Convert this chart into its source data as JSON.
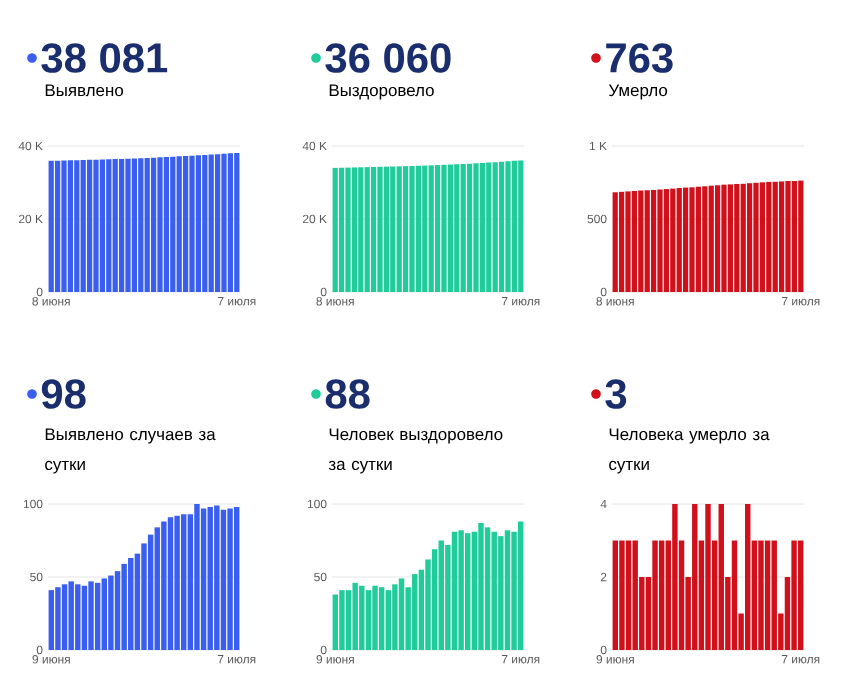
{
  "chart_data": [
    {
      "type": "bar",
      "title": "38 081",
      "subtitle": "Выявлено",
      "color": "#3a5ff0",
      "grid": "y",
      "categories": [
        "8 июня",
        null,
        null,
        null,
        null,
        null,
        null,
        null,
        null,
        null,
        null,
        null,
        null,
        null,
        null,
        null,
        null,
        null,
        null,
        null,
        null,
        null,
        null,
        null,
        null,
        null,
        null,
        null,
        null,
        "7 июля"
      ],
      "values": [
        35950,
        35990,
        36035,
        36080,
        36125,
        36170,
        36215,
        36260,
        36305,
        36355,
        36405,
        36460,
        36520,
        36585,
        36655,
        36730,
        36810,
        36895,
        36985,
        37075,
        37170,
        37265,
        37360,
        37455,
        37550,
        37650,
        37750,
        37850,
        37980,
        38081
      ],
      "ylim": [
        0,
        40000
      ],
      "yticks": [
        0,
        {
          "value": 20000,
          "label": "20 K"
        },
        {
          "value": 40000,
          "label": "40 K"
        }
      ]
    },
    {
      "type": "bar",
      "title": "36 060",
      "subtitle": "Выздоровело",
      "color": "#1fcc9a",
      "grid": "y",
      "categories": [
        "8 июня",
        null,
        null,
        null,
        null,
        null,
        null,
        null,
        null,
        null,
        null,
        null,
        null,
        null,
        null,
        null,
        null,
        null,
        null,
        null,
        null,
        null,
        null,
        null,
        null,
        null,
        null,
        null,
        null,
        "7 июля"
      ],
      "values": [
        34000,
        34040,
        34080,
        34120,
        34165,
        34205,
        34250,
        34290,
        34330,
        34375,
        34420,
        34470,
        34520,
        34575,
        34635,
        34700,
        34770,
        34845,
        34925,
        35005,
        35085,
        35170,
        35255,
        35340,
        35450,
        35570,
        35690,
        35810,
        35972,
        36060
      ],
      "ylim": [
        0,
        40000
      ],
      "yticks": [
        0,
        {
          "value": 20000,
          "label": "20 K"
        },
        {
          "value": 40000,
          "label": "40 K"
        }
      ]
    },
    {
      "type": "bar",
      "title": "763",
      "subtitle": "Умерло",
      "color": "#d0101b",
      "grid": "y",
      "categories": [
        "8 июня",
        null,
        null,
        null,
        null,
        null,
        null,
        null,
        null,
        null,
        null,
        null,
        null,
        null,
        null,
        null,
        null,
        null,
        null,
        null,
        null,
        null,
        null,
        null,
        null,
        null,
        null,
        null,
        null,
        "7 июля"
      ],
      "values": [
        683,
        686,
        689,
        692,
        695,
        697,
        699,
        702,
        705,
        708,
        712,
        715,
        717,
        721,
        724,
        728,
        731,
        735,
        737,
        740,
        741,
        745,
        748,
        751,
        754,
        755,
        757,
        760,
        760,
        763
      ],
      "ylim": [
        0,
        1000
      ],
      "yticks": [
        0,
        500,
        {
          "value": 1000,
          "label": "1 K"
        }
      ]
    },
    {
      "type": "bar",
      "title": "98",
      "subtitle": "Выявлено случаев за сутки",
      "color": "#3a5ff0",
      "grid": "y",
      "categories": [
        "9 июня",
        null,
        null,
        null,
        null,
        null,
        null,
        null,
        null,
        null,
        null,
        null,
        null,
        null,
        null,
        null,
        null,
        null,
        null,
        null,
        null,
        null,
        null,
        null,
        null,
        null,
        null,
        null,
        "7 июля"
      ],
      "values": [
        41,
        43,
        45,
        47,
        45,
        44,
        47,
        46,
        49,
        51,
        54,
        59,
        63,
        66,
        73,
        79,
        84,
        88,
        91,
        92,
        93,
        93,
        100,
        97,
        98,
        99,
        96,
        97,
        98
      ],
      "ylim": [
        0,
        100
      ],
      "yticks": [
        0,
        50,
        100
      ]
    },
    {
      "type": "bar",
      "title": "88",
      "subtitle": "Человек выздоровело за сутки",
      "color": "#1fcc9a",
      "grid": "y",
      "categories": [
        "9 июня",
        null,
        null,
        null,
        null,
        null,
        null,
        null,
        null,
        null,
        null,
        null,
        null,
        null,
        null,
        null,
        null,
        null,
        null,
        null,
        null,
        null,
        null,
        null,
        null,
        null,
        null,
        null,
        "7 июля"
      ],
      "values": [
        38,
        41,
        41,
        46,
        44,
        41,
        44,
        43,
        41,
        45,
        49,
        43,
        52,
        55,
        62,
        69,
        75,
        72,
        81,
        82,
        80,
        81,
        87,
        84,
        81,
        78,
        82,
        81,
        88
      ],
      "ylim": [
        0,
        100
      ],
      "yticks": [
        0,
        50,
        100
      ]
    },
    {
      "type": "bar",
      "title": "3",
      "subtitle": "Человека умерло за сутки",
      "color": "#d0101b",
      "grid": "y",
      "categories": [
        "9 июня",
        null,
        null,
        null,
        null,
        null,
        null,
        null,
        null,
        null,
        null,
        null,
        null,
        null,
        null,
        null,
        null,
        null,
        null,
        null,
        null,
        null,
        null,
        null,
        null,
        null,
        null,
        null,
        "7 июля"
      ],
      "values": [
        3,
        3,
        3,
        3,
        2,
        2,
        3,
        3,
        3,
        4,
        3,
        2,
        4,
        3,
        4,
        3,
        4,
        2,
        3,
        1,
        4,
        3,
        3,
        3,
        3,
        1,
        2,
        3,
        3
      ],
      "ylim": [
        0,
        4
      ],
      "yticks": [
        0,
        2,
        4
      ]
    }
  ]
}
